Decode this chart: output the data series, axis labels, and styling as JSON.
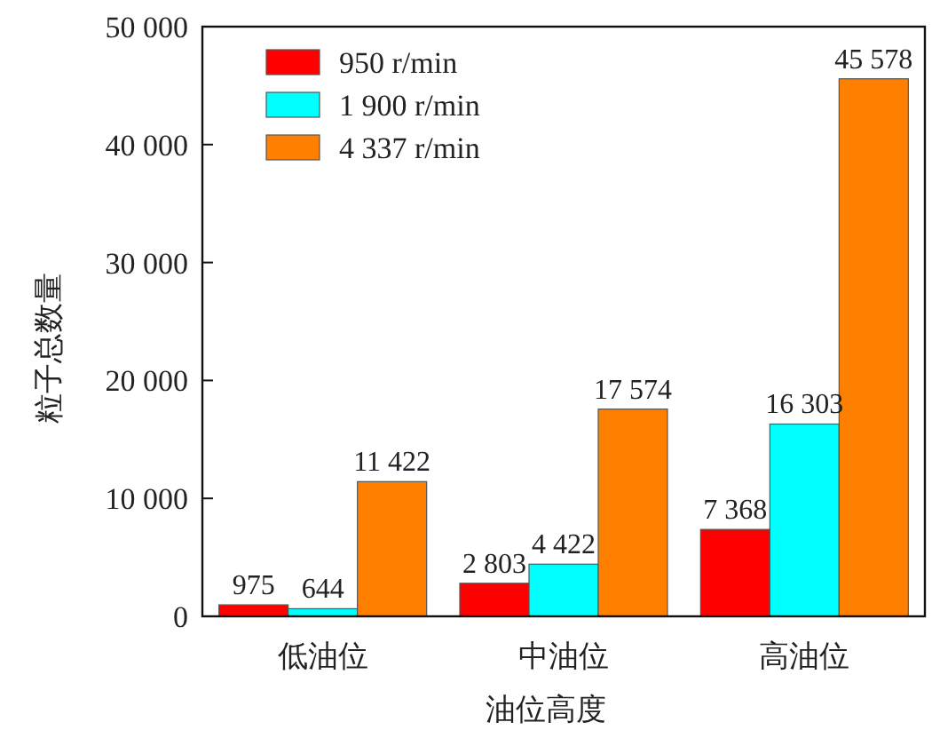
{
  "chart_data": {
    "type": "bar",
    "xlabel": "油位高度",
    "ylabel": "粒子总数量",
    "categories": [
      "低油位",
      "中油位",
      "高油位"
    ],
    "series": [
      {
        "name": "950 r/min",
        "color": "#ff0000",
        "values": [
          975,
          2803,
          7368
        ],
        "value_labels": [
          "975",
          "2 803",
          "7 368"
        ]
      },
      {
        "name": "1 900 r/min",
        "color": "#00ffff",
        "values": [
          644,
          4422,
          16303
        ],
        "value_labels": [
          "644",
          "4 422",
          "16 303"
        ]
      },
      {
        "name": "4 337 r/min",
        "color": "#ff8000",
        "values": [
          11422,
          17574,
          45578
        ],
        "value_labels": [
          "11 422",
          "17 574",
          "45 578"
        ]
      }
    ],
    "ylim": [
      0,
      50000
    ],
    "yticks": [
      {
        "value": 0,
        "label": "0"
      },
      {
        "value": 10000,
        "label": "10 000"
      },
      {
        "value": 20000,
        "label": "20 000"
      },
      {
        "value": 30000,
        "label": "30 000"
      },
      {
        "value": 40000,
        "label": "40 000"
      },
      {
        "value": 50000,
        "label": "50 000"
      }
    ],
    "legend": "top left",
    "grid": false
  }
}
